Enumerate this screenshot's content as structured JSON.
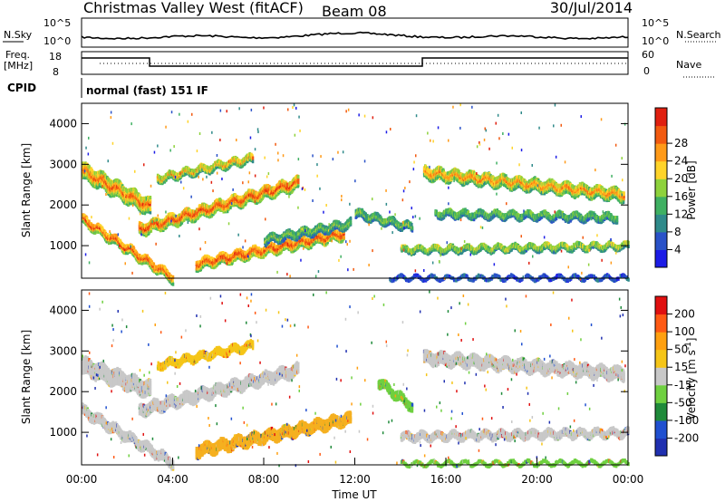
{
  "header": {
    "title": "Christmas Valley West (fitACF)",
    "beam": "Beam 08",
    "date": "30/Jul/2014"
  },
  "top_panels": {
    "nsky_label": "N.Sky",
    "nsky_left_ticks": [
      "10^5",
      "10^0"
    ],
    "nsearch_label": "N.Search",
    "nsearch_right_ticks": [
      "10^5",
      "10^0"
    ],
    "freq_label": [
      "Freq.",
      "[MHz]"
    ],
    "freq_ticks": [
      "18",
      "8"
    ],
    "nave_label": "Nave",
    "nave_ticks": [
      "60",
      "0"
    ],
    "cpid_label": "CPID",
    "cpid_mode": "normal (fast) 151 IF"
  },
  "chart_data": [
    {
      "type": "heatmap",
      "name": "power",
      "ylabel": "Slant Range [km]",
      "yticks": [
        1000,
        2000,
        3000,
        4000
      ],
      "ylim": [
        200,
        4500
      ],
      "xlim": [
        0,
        24
      ],
      "colorbar": {
        "label": "Power [dB]",
        "ticks": [
          "4",
          "8",
          "12",
          "16",
          "20",
          "24",
          "28"
        ],
        "colors": [
          "#1c1ce6",
          "#2a52c8",
          "#2f8a8a",
          "#3fb062",
          "#8ed23c",
          "#ffd42a",
          "#ff9a18",
          "#f25a10",
          "#e02010"
        ]
      },
      "features": [
        {
          "t0": 0.0,
          "t1": 3.0,
          "r0": 2900,
          "r1": 2000,
          "w": 380,
          "level": 0.75
        },
        {
          "t0": 0.0,
          "t1": 4.0,
          "r0": 1700,
          "r1": 250,
          "w": 200,
          "level": 0.8
        },
        {
          "t0": 2.5,
          "t1": 9.5,
          "r0": 1450,
          "r1": 2600,
          "w": 260,
          "level": 0.82
        },
        {
          "t0": 3.3,
          "t1": 7.5,
          "r0": 2700,
          "r1": 3200,
          "w": 160,
          "level": 0.65
        },
        {
          "t0": 5.0,
          "t1": 11.5,
          "r0": 600,
          "r1": 1350,
          "w": 230,
          "level": 0.85
        },
        {
          "t0": 8.0,
          "t1": 11.8,
          "r0": 1200,
          "r1": 1600,
          "w": 180,
          "level": 0.45
        },
        {
          "t0": 12.0,
          "t1": 14.5,
          "r0": 1850,
          "r1": 1500,
          "w": 160,
          "level": 0.45
        },
        {
          "t0": 14.0,
          "t1": 24.0,
          "r0": 950,
          "r1": 1050,
          "w": 120,
          "level": 0.55
        },
        {
          "t0": 15.0,
          "t1": 23.8,
          "r0": 2850,
          "r1": 2300,
          "w": 260,
          "level": 0.7
        },
        {
          "t0": 15.5,
          "t1": 23.5,
          "r0": 1850,
          "r1": 1750,
          "w": 150,
          "level": 0.45
        },
        {
          "t0": 13.5,
          "t1": 24.0,
          "r0": 280,
          "r1": 280,
          "w": 60,
          "level": 0.3
        }
      ]
    },
    {
      "type": "heatmap",
      "name": "velocity",
      "ylabel": "Slant Range [km]",
      "yticks": [
        1000,
        2000,
        3000,
        4000
      ],
      "ylim": [
        200,
        4500
      ],
      "xlim": [
        0,
        24
      ],
      "xticks": [
        "00:00",
        "04:00",
        "08:00",
        "12:00",
        "16:00",
        "20:00",
        "00:00"
      ],
      "xlabel": "Time UT",
      "colorbar": {
        "label": "Velocity [m s",
        "label_sup": "-1",
        "label_end": "]",
        "ticks": [
          "200",
          "100",
          "50",
          "15",
          "-15",
          "-50",
          "-100",
          "-200"
        ],
        "colors": [
          "#2030b0",
          "#2050d0",
          "#1f8a3a",
          "#6fd040",
          "#c8c8c8",
          "#f5c518",
          "#ffa010",
          "#ff5a14",
          "#e01010"
        ]
      },
      "features": [
        {
          "t0": 0.0,
          "t1": 3.0,
          "r0": 2700,
          "r1": 2100,
          "w": 380,
          "color": "#c8c8c8"
        },
        {
          "t0": 0.0,
          "t1": 4.0,
          "r0": 1600,
          "r1": 300,
          "w": 220,
          "color": "#c8c8c8"
        },
        {
          "t0": 2.5,
          "t1": 9.5,
          "r0": 1600,
          "r1": 2600,
          "w": 260,
          "color": "#c8c8c8"
        },
        {
          "t0": 3.3,
          "t1": 7.5,
          "r0": 2700,
          "r1": 3200,
          "w": 160,
          "color": "#f5c518"
        },
        {
          "t0": 5.0,
          "t1": 11.8,
          "r0": 600,
          "r1": 1400,
          "w": 260,
          "color": "#f5b020"
        },
        {
          "t0": 13.0,
          "t1": 14.5,
          "r0": 2300,
          "r1": 1700,
          "w": 200,
          "color": "#6fd040"
        },
        {
          "t0": 14.0,
          "t1": 24.0,
          "r0": 950,
          "r1": 1050,
          "w": 160,
          "color": "#c8c8c8"
        },
        {
          "t0": 15.0,
          "t1": 23.8,
          "r0": 2900,
          "r1": 2500,
          "w": 280,
          "color": "#c8c8c8"
        },
        {
          "t0": 14.0,
          "t1": 24.0,
          "r0": 300,
          "r1": 320,
          "w": 60,
          "color": "#6fd040"
        }
      ]
    }
  ]
}
